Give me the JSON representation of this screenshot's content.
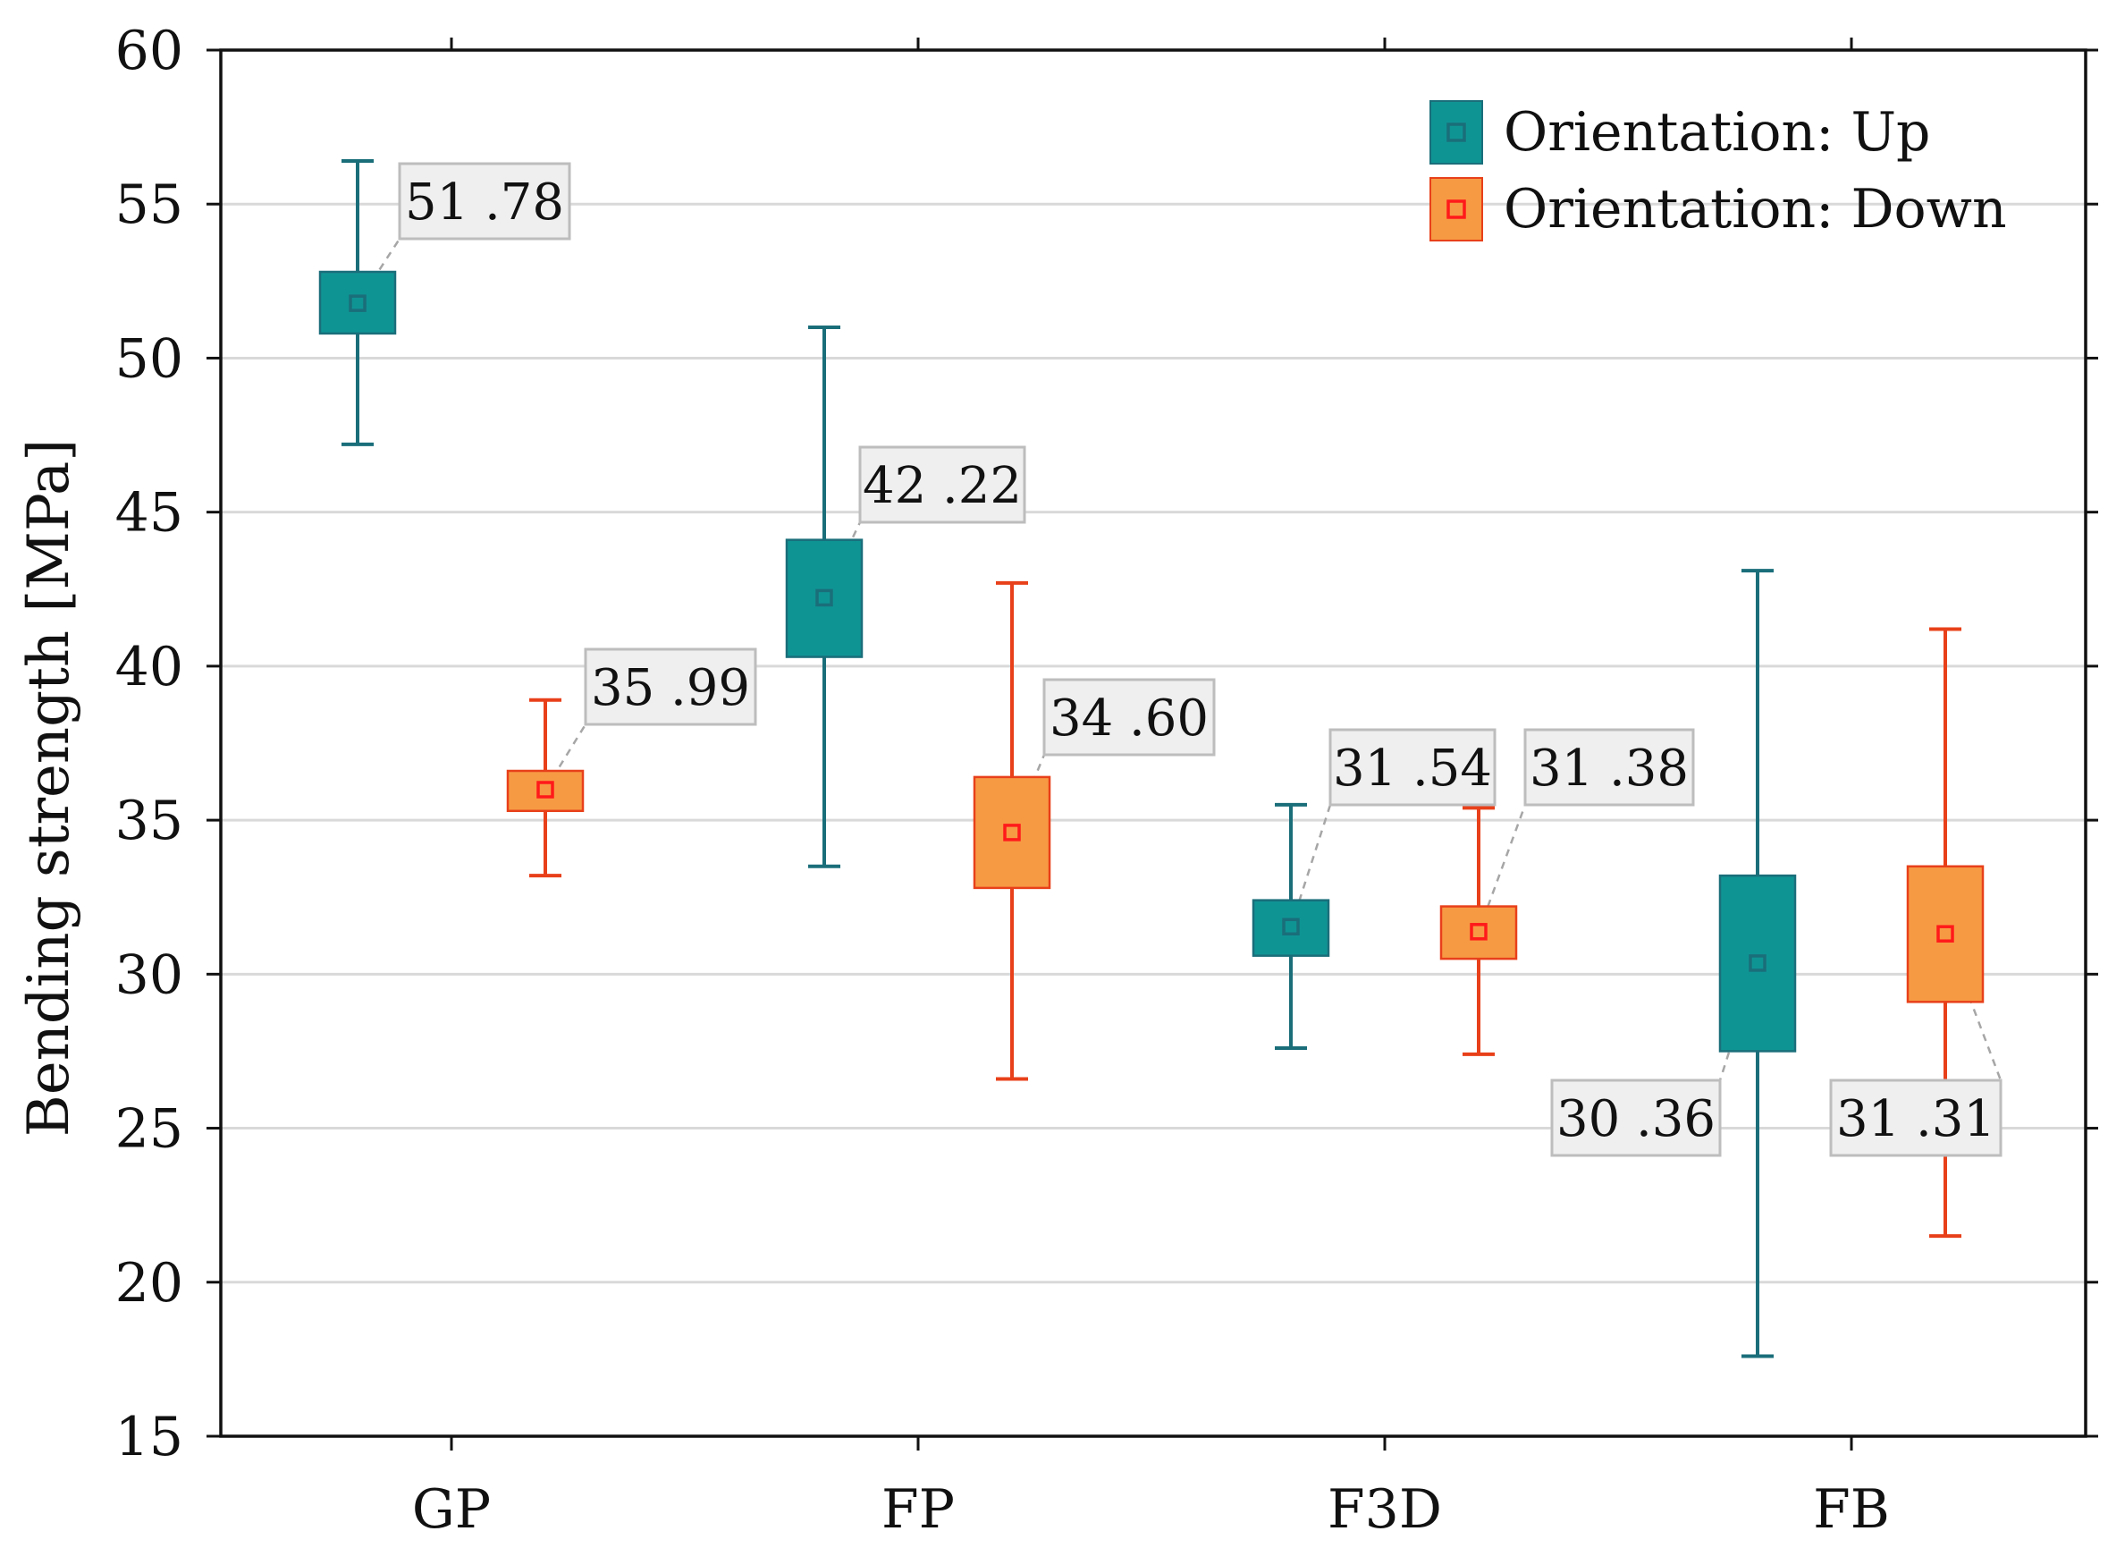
{
  "chart_data": {
    "type": "box",
    "title": "",
    "xlabel": "",
    "ylabel": "Bending strength [MPa]",
    "ylim": [
      15,
      60
    ],
    "yticks": [
      15,
      20,
      25,
      30,
      35,
      40,
      45,
      50,
      55,
      60
    ],
    "ytick_labels": [
      "15",
      "20",
      "25",
      "30",
      "35",
      "40",
      "45",
      "50",
      "55",
      "60"
    ],
    "grid": true,
    "legend_position": "top-right",
    "categories": [
      "GP",
      "FP",
      "F3D",
      "FB"
    ],
    "series": [
      {
        "name": "Orientation: Up",
        "color": "#0f9494",
        "edge_color": "#1a6e7a",
        "marker_color": "#1a6e7a",
        "boxes": [
          {
            "category": "GP",
            "mean": 51.78,
            "box_low": 50.8,
            "box_high": 52.8,
            "whisker_low": 47.2,
            "whisker_high": 56.4,
            "label": "51 .78"
          },
          {
            "category": "FP",
            "mean": 42.22,
            "box_low": 40.3,
            "box_high": 44.1,
            "whisker_low": 33.5,
            "whisker_high": 51.0,
            "label": "42 .22"
          },
          {
            "category": "F3D",
            "mean": 31.54,
            "box_low": 30.6,
            "box_high": 32.4,
            "whisker_low": 27.6,
            "whisker_high": 35.5,
            "label": "31 .54"
          },
          {
            "category": "FB",
            "mean": 30.36,
            "box_low": 27.5,
            "box_high": 33.2,
            "whisker_low": 17.6,
            "whisker_high": 43.1,
            "label": "30 .36"
          }
        ]
      },
      {
        "name": "Orientation: Down",
        "color": "#f79a44",
        "edge_color": "#e8401a",
        "marker_color": "#ff1a1a",
        "boxes": [
          {
            "category": "GP",
            "mean": 35.99,
            "box_low": 35.3,
            "box_high": 36.6,
            "whisker_low": 33.2,
            "whisker_high": 38.9,
            "label": "35 .99"
          },
          {
            "category": "FP",
            "mean": 34.6,
            "box_low": 32.8,
            "box_high": 36.4,
            "whisker_low": 26.6,
            "whisker_high": 42.7,
            "label": "34 .60"
          },
          {
            "category": "F3D",
            "mean": 31.38,
            "box_low": 30.5,
            "box_high": 32.2,
            "whisker_low": 27.4,
            "whisker_high": 35.4,
            "label": "31 .38"
          },
          {
            "category": "FB",
            "mean": 31.31,
            "box_low": 29.1,
            "box_high": 33.5,
            "whisker_low": 21.5,
            "whisker_high": 41.2,
            "label": "31 .31"
          }
        ]
      }
    ]
  },
  "legend": {
    "items": [
      {
        "label": "Orientation: Up",
        "fill": "#0f9494",
        "marker": "#1a6e7a"
      },
      {
        "label": "Orientation: Down",
        "fill": "#f79a44",
        "marker": "#ff1a1a"
      }
    ]
  },
  "colors": {
    "grid": "#d9d9d9",
    "frame": "#111111",
    "label_box_fill": "#efefef",
    "label_box_stroke": "#bdbdbd",
    "leader_line": "#a6a6a6"
  }
}
